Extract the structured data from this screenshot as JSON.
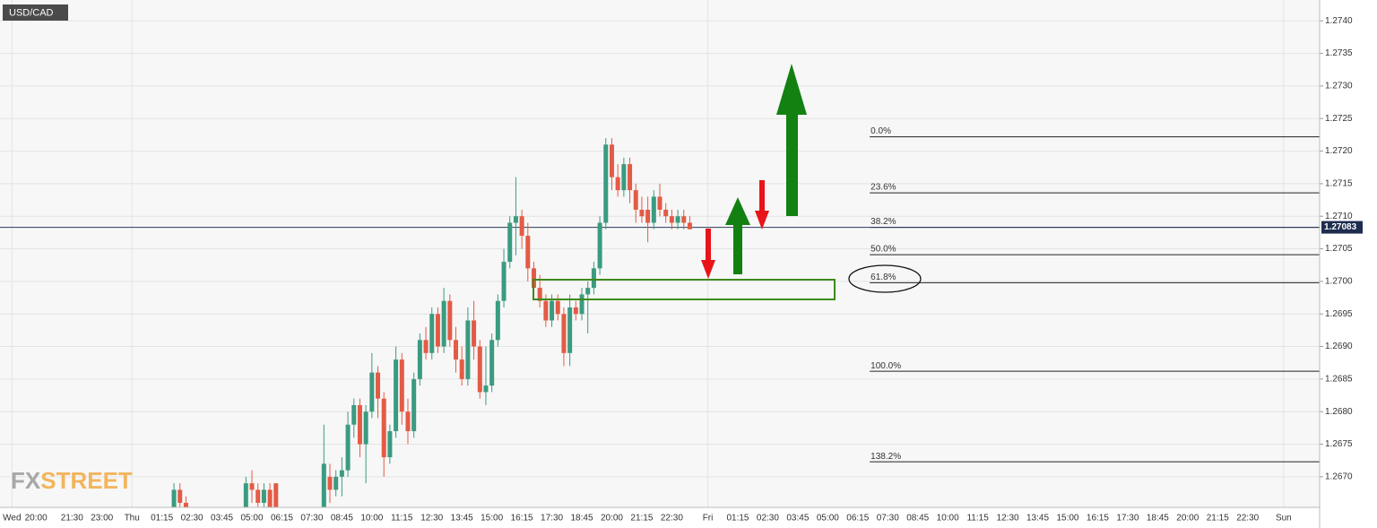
{
  "chart_data": {
    "type": "candlestick",
    "symbol": "USD/CAD",
    "watermark": [
      "FX",
      "STREET"
    ],
    "up_color": "#3a9b80",
    "down_color": "#e35b45",
    "x": [
      29,
      30,
      31,
      41,
      42,
      43,
      44,
      45,
      46,
      54,
      55,
      56,
      57,
      58,
      59,
      60,
      61,
      62,
      63,
      64,
      65,
      66,
      67,
      68,
      69,
      70,
      71,
      72,
      73,
      74,
      75,
      76,
      77,
      78,
      79,
      80,
      81,
      82,
      83,
      84,
      85,
      86,
      87,
      88,
      89,
      90,
      91,
      92,
      93,
      94,
      95,
      96,
      97,
      98,
      99,
      100,
      101,
      102,
      103,
      104,
      105,
      106,
      107,
      108,
      109,
      110,
      111,
      112,
      113,
      114,
      115
    ],
    "open": [
      1.2665,
      1.2668,
      1.2666,
      1.2664,
      1.2669,
      1.2668,
      1.2666,
      1.2668,
      1.2669,
      1.2665,
      1.267,
      1.2668,
      1.267,
      1.2671,
      1.2678,
      1.2681,
      1.2675,
      1.268,
      1.2686,
      1.2682,
      1.2673,
      1.2677,
      1.2688,
      1.268,
      1.2677,
      1.2685,
      1.2691,
      1.2689,
      1.2695,
      1.269,
      1.2697,
      1.2691,
      1.2688,
      1.2685,
      1.2694,
      1.269,
      1.2683,
      1.2684,
      1.2691,
      1.2697,
      1.2703,
      1.2709,
      1.271,
      1.2707,
      1.2702,
      1.2699,
      1.2697,
      1.2694,
      1.2697,
      1.2695,
      1.2689,
      1.2696,
      1.2695,
      1.2698,
      1.2699,
      1.2702,
      1.2709,
      1.2721,
      1.2716,
      1.2714,
      1.2718,
      1.2714,
      1.2711,
      1.2711,
      1.2709,
      1.2713,
      1.2711,
      1.271,
      1.2709,
      1.271,
      1.2709
    ],
    "high": [
      1.2669,
      1.2669,
      1.2667,
      1.267,
      1.2671,
      1.2669,
      1.2669,
      1.2669,
      1.2669,
      1.2678,
      1.2672,
      1.2671,
      1.2673,
      1.268,
      1.2682,
      1.2682,
      1.2681,
      1.2689,
      1.2687,
      1.2683,
      1.2678,
      1.269,
      1.2689,
      1.2682,
      1.2686,
      1.2692,
      1.2693,
      1.2696,
      1.2696,
      1.2699,
      1.2698,
      1.2693,
      1.269,
      1.2696,
      1.2697,
      1.2691,
      1.269,
      1.2692,
      1.2698,
      1.2705,
      1.271,
      1.2716,
      1.2711,
      1.2709,
      1.2703,
      1.2701,
      1.2698,
      1.2698,
      1.2698,
      1.2696,
      1.2698,
      1.2697,
      1.2699,
      1.27,
      1.2703,
      1.271,
      1.2722,
      1.2722,
      1.2718,
      1.2719,
      1.2719,
      1.2715,
      1.2713,
      1.2713,
      1.2714,
      1.2715,
      1.2712,
      1.2711,
      1.2711,
      1.2711,
      1.271
    ],
    "low": [
      1.266,
      1.2664,
      1.2662,
      1.2662,
      1.2666,
      1.2664,
      1.2663,
      1.2662,
      1.266,
      1.2663,
      1.2666,
      1.2667,
      1.2667,
      1.267,
      1.2676,
      1.2673,
      1.2669,
      1.2679,
      1.2679,
      1.267,
      1.2672,
      1.2676,
      1.2678,
      1.2675,
      1.2676,
      1.2684,
      1.2688,
      1.2688,
      1.2689,
      1.2689,
      1.269,
      1.2686,
      1.2684,
      1.2684,
      1.2688,
      1.2682,
      1.2681,
      1.2683,
      1.269,
      1.2696,
      1.2702,
      1.2704,
      1.2705,
      1.27,
      1.2698,
      1.2696,
      1.2693,
      1.2693,
      1.2694,
      1.2687,
      1.2687,
      1.2694,
      1.2694,
      1.2692,
      1.2698,
      1.2701,
      1.2708,
      1.2714,
      1.2713,
      1.2713,
      1.2712,
      1.2709,
      1.2709,
      1.2706,
      1.2708,
      1.271,
      1.2709,
      1.2708,
      1.2708,
      1.2708,
      1.2708
    ],
    "close": [
      1.2668,
      1.2666,
      1.2663,
      1.2669,
      1.2668,
      1.2666,
      1.2668,
      1.2663,
      1.2662,
      1.2672,
      1.2668,
      1.267,
      1.2671,
      1.2678,
      1.2681,
      1.2675,
      1.268,
      1.2686,
      1.2682,
      1.2673,
      1.2677,
      1.2688,
      1.268,
      1.2677,
      1.2685,
      1.2691,
      1.2689,
      1.2695,
      1.269,
      1.2697,
      1.2691,
      1.2688,
      1.2685,
      1.2694,
      1.269,
      1.2683,
      1.2684,
      1.2691,
      1.2697,
      1.2703,
      1.2709,
      1.271,
      1.2707,
      1.2702,
      1.2699,
      1.2697,
      1.2694,
      1.2697,
      1.2695,
      1.2689,
      1.2696,
      1.2695,
      1.2698,
      1.2699,
      1.2702,
      1.2709,
      1.2721,
      1.2716,
      1.2714,
      1.2718,
      1.2714,
      1.2711,
      1.271,
      1.2709,
      1.2713,
      1.2711,
      1.271,
      1.2709,
      1.271,
      1.2709,
      1.2708
    ],
    "last_price": {
      "value": 1.27083,
      "label": "1.27083"
    },
    "fib_start": 145,
    "fib_levels": [
      {
        "value": 1.27222,
        "label": "0.0%"
      },
      {
        "value": 1.27136,
        "label": "23.6%"
      },
      {
        "value": 1.27083,
        "label": "38.2%"
      },
      {
        "value": 1.27041,
        "label": "50.0%"
      },
      {
        "value": 1.26998,
        "label": "61.8%"
      },
      {
        "value": 1.26862,
        "label": "100.0%"
      },
      {
        "value": 1.26723,
        "label": "138.2%"
      }
    ],
    "xlim": [
      0,
      220
    ],
    "xticks": [
      {
        "value": 2,
        "label": "Wed"
      },
      {
        "value": 6,
        "label": "20:00"
      },
      {
        "value": 12,
        "label": "21:30"
      },
      {
        "value": 17,
        "label": "23:00"
      },
      {
        "value": 22,
        "label": "Thu"
      },
      {
        "value": 27,
        "label": "01:15"
      },
      {
        "value": 32,
        "label": "02:30"
      },
      {
        "value": 37,
        "label": "03:45"
      },
      {
        "value": 42,
        "label": "05:00"
      },
      {
        "value": 47,
        "label": "06:15"
      },
      {
        "value": 52,
        "label": "07:30"
      },
      {
        "value": 57,
        "label": "08:45"
      },
      {
        "value": 62,
        "label": "10:00"
      },
      {
        "value": 67,
        "label": "11:15"
      },
      {
        "value": 72,
        "label": "12:30"
      },
      {
        "value": 77,
        "label": "13:45"
      },
      {
        "value": 82,
        "label": "15:00"
      },
      {
        "value": 87,
        "label": "16:15"
      },
      {
        "value": 92,
        "label": "17:30"
      },
      {
        "value": 97,
        "label": "18:45"
      },
      {
        "value": 102,
        "label": "20:00"
      },
      {
        "value": 107,
        "label": "21:15"
      },
      {
        "value": 112,
        "label": "22:30"
      },
      {
        "value": 118,
        "label": "Fri"
      },
      {
        "value": 123,
        "label": "01:15"
      },
      {
        "value": 128,
        "label": "02:30"
      },
      {
        "value": 133,
        "label": "03:45"
      },
      {
        "value": 138,
        "label": "05:00"
      },
      {
        "value": 143,
        "label": "06:15"
      },
      {
        "value": 148,
        "label": "07:30"
      },
      {
        "value": 153,
        "label": "08:45"
      },
      {
        "value": 158,
        "label": "10:00"
      },
      {
        "value": 163,
        "label": "11:15"
      },
      {
        "value": 168,
        "label": "12:30"
      },
      {
        "value": 173,
        "label": "13:45"
      },
      {
        "value": 178,
        "label": "15:00"
      },
      {
        "value": 183,
        "label": "16:15"
      },
      {
        "value": 188,
        "label": "17:30"
      },
      {
        "value": 193,
        "label": "18:45"
      },
      {
        "value": 198,
        "label": "20:00"
      },
      {
        "value": 203,
        "label": "21:15"
      },
      {
        "value": 208,
        "label": "22:30"
      },
      {
        "value": 214,
        "label": "Sun"
      }
    ],
    "ylim": [
      1.26653,
      1.27432
    ],
    "yticks": [
      {
        "value": 1.267,
        "label": "1.2670"
      },
      {
        "value": 1.2675,
        "label": "1.2675"
      },
      {
        "value": 1.268,
        "label": "1.2680"
      },
      {
        "value": 1.2685,
        "label": "1.2685"
      },
      {
        "value": 1.269,
        "label": "1.2690"
      },
      {
        "value": 1.2695,
        "label": "1.2695"
      },
      {
        "value": 1.27,
        "label": "1.2700"
      },
      {
        "value": 1.2705,
        "label": "1.2705"
      },
      {
        "value": 1.271,
        "label": "1.2710"
      },
      {
        "value": 1.2715,
        "label": "1.2715"
      },
      {
        "value": 1.272,
        "label": "1.2720"
      },
      {
        "value": 1.2725,
        "label": "1.2725"
      },
      {
        "value": 1.273,
        "label": "1.2730"
      },
      {
        "value": 1.2735,
        "label": "1.2735"
      },
      {
        "value": 1.274,
        "label": "1.2740"
      }
    ],
    "grid": true
  }
}
